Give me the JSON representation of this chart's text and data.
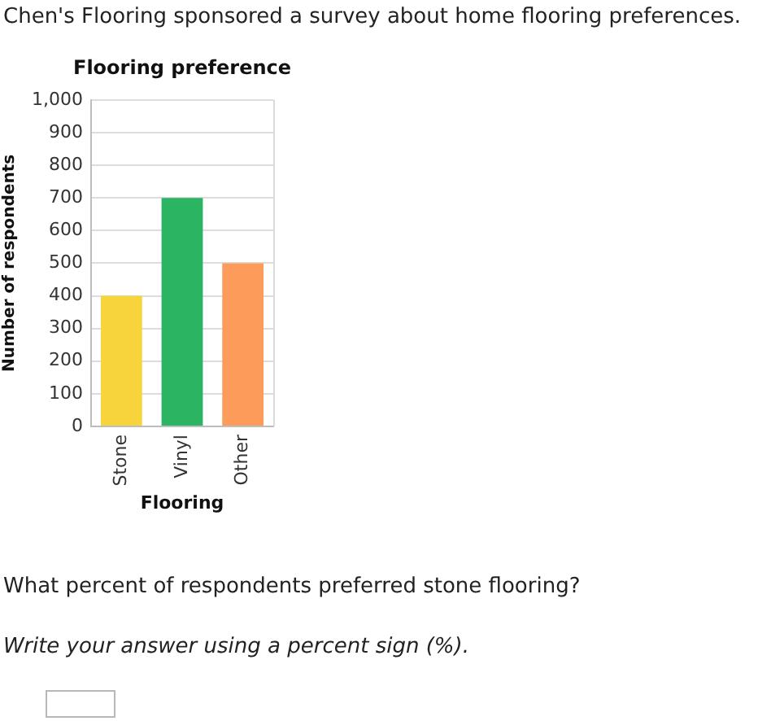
{
  "chart_data": {
    "type": "bar",
    "title": "Flooring preference",
    "xlabel": "Flooring",
    "ylabel": "Number of respondents",
    "categories": [
      "Stone",
      "Vinyl",
      "Other"
    ],
    "values": [
      400,
      700,
      500
    ],
    "colors": [
      "#f8d43c",
      "#2bb563",
      "#fd9b5b"
    ],
    "ylim": [
      0,
      1000
    ],
    "yticks": [
      0,
      100,
      200,
      300,
      400,
      500,
      600,
      700,
      800,
      900,
      {
        "value": 1000,
        "label": "1,000"
      }
    ],
    "grid": "y",
    "annotations": [
      "Chen's Flooring sponsored a survey about home flooring preferences.",
      "What percent of respondents preferred stone flooring?",
      "Write your answer using a percent sign (%)."
    ]
  }
}
